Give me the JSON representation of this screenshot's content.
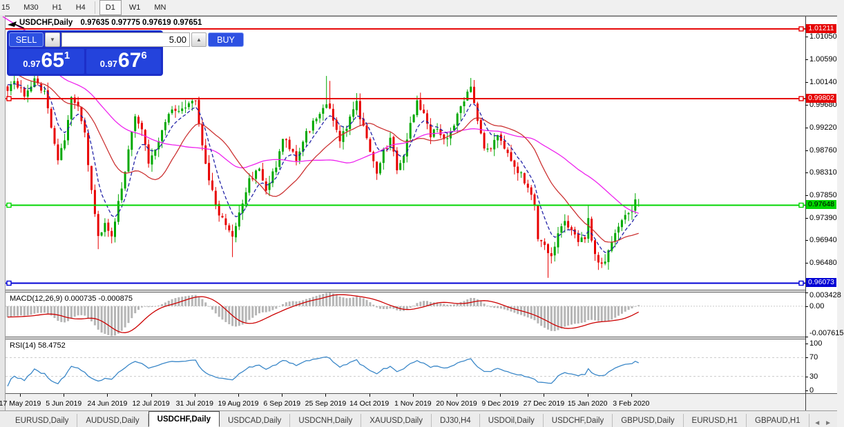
{
  "toolbar": {
    "timeframes": [
      "15",
      "M30",
      "H1",
      "H4",
      "D1",
      "W1",
      "MN"
    ],
    "active": "D1"
  },
  "chart": {
    "title_symbol": "USDCHF,Daily",
    "title_quotes": "0.97635 0.97775 0.97619 0.97651"
  },
  "trade_panel": {
    "sell_label": "SELL",
    "buy_label": "BUY",
    "volume": "5.00",
    "sell_price_small": "0.97",
    "sell_price_big": "65",
    "sell_price_sup": "1",
    "buy_price_small": "0.97",
    "buy_price_big": "67",
    "buy_price_sup": "6"
  },
  "chart_data": {
    "type": "candlestick",
    "symbol": "USDCHF",
    "period": "Daily",
    "last_quote": {
      "open": 0.97635,
      "high": 0.97775,
      "low": 0.97619,
      "close": 0.97651
    },
    "price_range": [
      0.9594,
      1.01461
    ],
    "y_axis_ticks": [
      "1.01050",
      "1.00590",
      "1.00140",
      "0.99680",
      "0.99220",
      "0.98760",
      "0.98310",
      "0.97850",
      "0.97390",
      "0.96940",
      "0.96480"
    ],
    "level_lines": [
      {
        "label": "1.01211",
        "value": 1.01211,
        "color": "#e60000",
        "text_color": "#ffffff"
      },
      {
        "label": "0.99802",
        "value": 0.99802,
        "color": "#e60000",
        "text_color": "#ffffff"
      },
      {
        "label": "0.97648",
        "value": 0.97648,
        "color": "#00d500",
        "text_color": "#000000"
      },
      {
        "label": "0.96073",
        "value": 0.96073,
        "color": "#0000d5",
        "text_color": "#ffffff"
      }
    ],
    "x_axis_dates": [
      "17 May 2019",
      "5 Jun 2019",
      "24 Jun 2019",
      "12 Jul 2019",
      "31 Jul 2019",
      "19 Aug 2019",
      "6 Sep 2019",
      "25 Sep 2019",
      "14 Oct 2019",
      "1 Nov 2019",
      "20 Nov 2019",
      "9 Dec 2019",
      "27 Dec 2019",
      "15 Jan 2020",
      "3 Feb 2020"
    ],
    "candle_count": 189,
    "close_path_estimate": [
      [
        0,
        1.0
      ],
      [
        2,
        1.0015
      ],
      [
        5,
        0.999
      ],
      [
        8,
        1.0018
      ],
      [
        11,
        0.9995
      ],
      [
        15,
        0.986
      ],
      [
        17,
        0.99
      ],
      [
        19,
        0.998
      ],
      [
        21,
        0.996
      ],
      [
        23,
        0.991
      ],
      [
        25,
        0.979
      ],
      [
        27,
        0.97
      ],
      [
        29,
        0.973
      ],
      [
        31,
        0.9705
      ],
      [
        34,
        0.98
      ],
      [
        38,
        0.995
      ],
      [
        40,
        0.992
      ],
      [
        42,
        0.9845
      ],
      [
        45,
        0.99
      ],
      [
        48,
        0.9955
      ],
      [
        52,
        0.996
      ],
      [
        56,
        0.9975
      ],
      [
        58,
        0.988
      ],
      [
        61,
        0.979
      ],
      [
        63,
        0.9745
      ],
      [
        65,
        0.973
      ],
      [
        67,
        0.97
      ],
      [
        69,
        0.9745
      ],
      [
        72,
        0.9815
      ],
      [
        75,
        0.9835
      ],
      [
        77,
        0.9795
      ],
      [
        80,
        0.9845
      ],
      [
        82,
        0.9905
      ],
      [
        84,
        0.9875
      ],
      [
        86,
        0.986
      ],
      [
        89,
        0.991
      ],
      [
        92,
        0.994
      ],
      [
        95,
        0.9975
      ],
      [
        97,
        0.9935
      ],
      [
        99,
        0.9895
      ],
      [
        102,
        0.994
      ],
      [
        104,
        0.997
      ],
      [
        106,
        0.992
      ],
      [
        108,
        0.987
      ],
      [
        110,
        0.9835
      ],
      [
        112,
        0.9875
      ],
      [
        114,
        0.9895
      ],
      [
        116,
        0.984
      ],
      [
        118,
        0.987
      ],
      [
        120,
        0.993
      ],
      [
        122,
        0.9975
      ],
      [
        124,
        0.995
      ],
      [
        126,
        0.9905
      ],
      [
        128,
        0.992
      ],
      [
        130,
        0.9895
      ],
      [
        132,
        0.991
      ],
      [
        134,
        0.995
      ],
      [
        136,
        0.998
      ],
      [
        138,
        1.0
      ],
      [
        140,
        0.993
      ],
      [
        142,
        0.988
      ],
      [
        144,
        0.9885
      ],
      [
        146,
        0.991
      ],
      [
        148,
        0.988
      ],
      [
        150,
        0.985
      ],
      [
        152,
        0.9835
      ],
      [
        154,
        0.9815
      ],
      [
        156,
        0.979
      ],
      [
        157,
        0.9765
      ],
      [
        158,
        0.97
      ],
      [
        160,
        0.968
      ],
      [
        162,
        0.966
      ],
      [
        164,
        0.9705
      ],
      [
        166,
        0.973
      ],
      [
        168,
        0.971
      ],
      [
        170,
        0.969
      ],
      [
        172,
        0.97
      ],
      [
        173,
        0.9745
      ],
      [
        174,
        0.969
      ],
      [
        176,
        0.965
      ],
      [
        178,
        0.9655
      ],
      [
        180,
        0.969
      ],
      [
        182,
        0.972
      ],
      [
        184,
        0.974
      ],
      [
        186,
        0.9757
      ],
      [
        187,
        0.977
      ],
      [
        188,
        0.97651
      ]
    ],
    "wick_spikes": [
      {
        "i": 2,
        "high": 1.0032
      },
      {
        "i": 27,
        "low": 0.9676
      },
      {
        "i": 67,
        "low": 0.966
      },
      {
        "i": 95,
        "high": 1.0026
      },
      {
        "i": 96,
        "high": 1.0016
      },
      {
        "i": 138,
        "high": 1.0022
      },
      {
        "i": 161,
        "low": 0.9618
      },
      {
        "i": 173,
        "high": 0.9766
      },
      {
        "i": 176,
        "low": 0.9634
      },
      {
        "i": 187,
        "high": 0.9789
      }
    ],
    "lead_in_trend": {
      "count": 45,
      "from": 1.0185
    },
    "colors": {
      "candle_up": "#00a800",
      "candle_down": "#e80000",
      "ma_fast": "#2424a8",
      "ma_mid": "#cc3333",
      "ma_slow": "#ee22ee",
      "macd_bars": "#b6b6b6",
      "macd_signal": "#cc0000",
      "rsi_line": "#3a87c8"
    },
    "ma_lines": [
      {
        "name": "fast",
        "period": 7,
        "style": "dashed"
      },
      {
        "name": "mid",
        "period": 21,
        "style": "solid"
      },
      {
        "name": "slow",
        "period": 45,
        "style": "solid"
      }
    ],
    "macd": {
      "label": "MACD(12,26,9)",
      "values": "0.000735 -0.000875",
      "axis": [
        {
          "text": "0.003428",
          "value": 0.003428
        },
        {
          "text": "0.00",
          "value": 0
        },
        {
          "text": "-0.007615",
          "value": -0.007615
        }
      ],
      "range": [
        -0.007615,
        0.003428
      ]
    },
    "rsi": {
      "label": "RSI(14)",
      "value": "58.4752",
      "levels": [
        70,
        30
      ],
      "axis": [
        {
          "text": "100",
          "value": 100
        },
        {
          "text": "70",
          "value": 70
        },
        {
          "text": "30",
          "value": 30
        },
        {
          "text": "0",
          "value": 0
        }
      ]
    }
  },
  "tabs": {
    "items": [
      "EURUSD,Daily",
      "AUDUSD,Daily",
      "USDCHF,Daily",
      "USDCAD,Daily",
      "USDCNH,Daily",
      "XAUUSD,Daily",
      "DJ30,H4",
      "USDOil,Daily",
      "USDCHF,Daily",
      "GBPUSD,Daily",
      "EURUSD,H1",
      "GBPAUD,H1"
    ],
    "active_index": 2,
    "scroll_left": "◄",
    "scroll_right": "►"
  }
}
